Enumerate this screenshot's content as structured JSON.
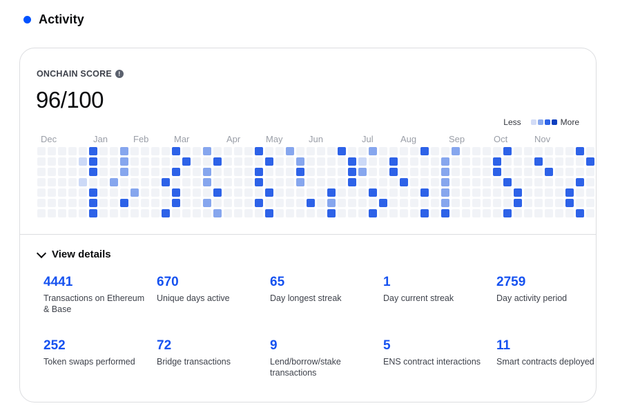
{
  "header": {
    "title": "Activity",
    "accent": "#0052ff"
  },
  "score": {
    "label": "ONCHAIN SCORE",
    "info_icon": "info-icon",
    "value": "96/100"
  },
  "legend": {
    "less": "Less",
    "more": "More",
    "levels": [
      "#ecf0f7",
      "#d3dcf6",
      "#8aa9ee",
      "#2e64e8",
      "#0d3fbf"
    ]
  },
  "heatmap": {
    "months": [
      "Dec",
      "Jan",
      "Feb",
      "Mar",
      "Apr",
      "May",
      "Jun",
      "Jul",
      "Aug",
      "Sep",
      "Oct",
      "Nov"
    ],
    "grid": [
      "0000030020000300200003002000030020000300200003000000300003000003000",
      "0000130020000030030000300200003100300002000030003000030000300000310",
      "0000030020000300200003000300003200300002000030000300003000300000310",
      "0000100200003000200003000200003000030002000003000000300003000300000",
      "0000030002000300030000300000300030000302000000300003000003000000310",
      "0000030030000300200003000030200003000002000000300003000003000000300",
      "0000030000003000020000300000300030000303000003000000300000300000100"
    ]
  },
  "details": {
    "toggle_label": "View details",
    "stats": [
      {
        "value": "4441",
        "label": "Transactions on Ethereum & Base"
      },
      {
        "value": "670",
        "label": "Unique days active"
      },
      {
        "value": "65",
        "label": "Day longest streak"
      },
      {
        "value": "1",
        "label": "Day current streak"
      },
      {
        "value": "2759",
        "label": "Day activity period"
      },
      {
        "value": "252",
        "label": "Token swaps performed"
      },
      {
        "value": "72",
        "label": "Bridge transactions"
      },
      {
        "value": "9",
        "label": "Lend/borrow/stake transactions"
      },
      {
        "value": "5",
        "label": "ENS contract interactions"
      },
      {
        "value": "11",
        "label": "Smart contracts deployed"
      }
    ]
  }
}
